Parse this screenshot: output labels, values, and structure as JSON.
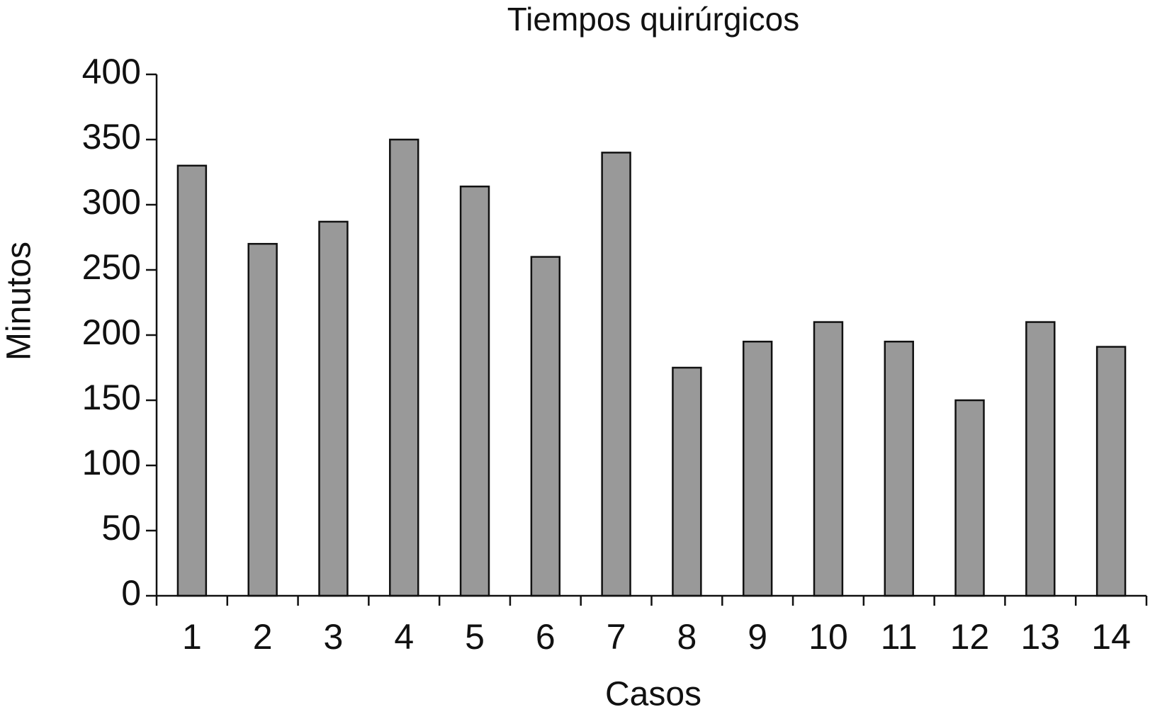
{
  "chart_data": {
    "type": "bar",
    "title": "Tiempos quirúrgicos",
    "x_label": "Casos",
    "y_label": "Minutos",
    "categories": [
      "1",
      "2",
      "3",
      "4",
      "5",
      "6",
      "7",
      "8",
      "9",
      "10",
      "11",
      "12",
      "13",
      "14"
    ],
    "values": [
      330,
      270,
      287,
      350,
      314,
      260,
      340,
      175,
      195,
      210,
      195,
      150,
      210,
      191
    ],
    "color": "#999999",
    "ylim": [
      0,
      400
    ],
    "yticks": [
      0,
      50,
      100,
      150,
      200,
      250,
      300,
      350,
      400
    ],
    "grid": false
  }
}
